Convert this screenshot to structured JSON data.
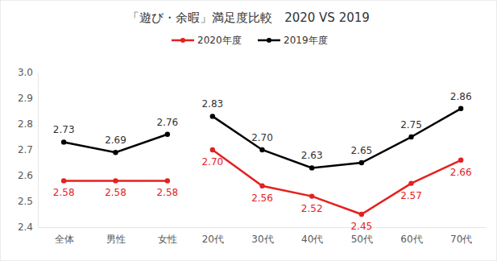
{
  "chart_data": [
    {
      "type": "line",
      "title": "「遊び・余暇」満足度比較　2020 VS 2019",
      "legend": "top",
      "grid": false,
      "data_labels": true,
      "marker": "circle",
      "categories": [
        "全体",
        "男性",
        "女性"
      ],
      "ylim": [
        2.4,
        3.0
      ],
      "yticks": [
        {
          "value": 2.4,
          "label": "2.4"
        },
        2.5,
        2.6,
        2.7,
        2.8,
        2.9,
        {
          "value": 3.0,
          "label": "3.0"
        }
      ],
      "series": [
        {
          "name": "2020年度",
          "color": "#e3211f",
          "values": [
            2.58,
            2.58,
            2.58
          ],
          "value_labels": [
            "2.58",
            "2.58",
            "2.58"
          ]
        },
        {
          "name": "2019年度",
          "color": "#000000",
          "values": [
            2.73,
            2.69,
            2.76
          ],
          "value_labels": [
            "2.73",
            "2.69",
            "2.76"
          ]
        }
      ]
    },
    {
      "type": "line",
      "grid": false,
      "data_labels": true,
      "marker": "circle",
      "tick_labels": "x",
      "categories": [
        "20代",
        "30代",
        "40代",
        "50代",
        "60代",
        "70代"
      ],
      "ylim": [
        2.4,
        3.0
      ],
      "series": [
        {
          "name": "2020年度",
          "color": "#e3211f",
          "values": [
            2.7,
            2.56,
            2.52,
            2.45,
            2.57,
            2.66
          ],
          "value_labels": [
            "2.70",
            "2.56",
            "2.52",
            "2.45",
            "2.57",
            "2.66"
          ]
        },
        {
          "name": "2019年度",
          "color": "#000000",
          "values": [
            2.83,
            2.7,
            2.63,
            2.65,
            2.75,
            2.86
          ],
          "value_labels": [
            "2.83",
            "2.70",
            "2.63",
            "2.65",
            "2.75",
            "2.86"
          ]
        }
      ]
    }
  ]
}
